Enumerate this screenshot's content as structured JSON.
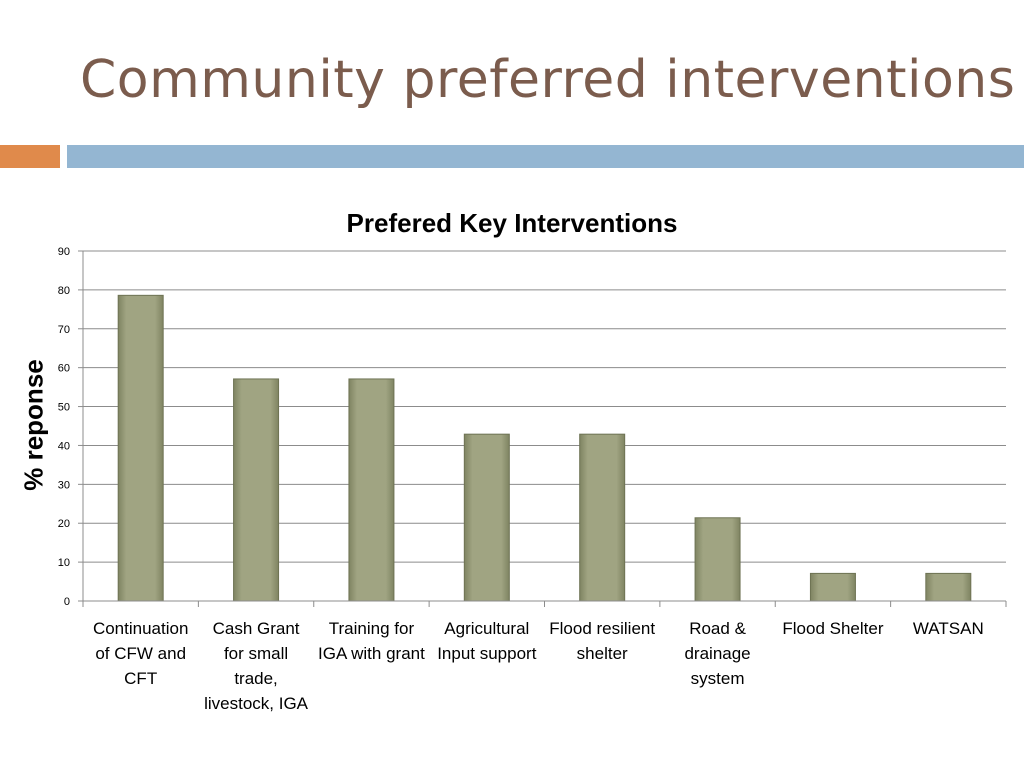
{
  "slide": {
    "title": "Community preferred interventions",
    "accent_colors": [
      "#e08a4b",
      "#94b6d2"
    ]
  },
  "chart_data": {
    "type": "bar",
    "title": "Prefered Key Interventions",
    "xlabel": "",
    "ylabel": "% reponse",
    "ylim": [
      0,
      90
    ],
    "yticks": [
      0,
      10,
      20,
      30,
      40,
      50,
      60,
      70,
      80,
      90
    ],
    "grid": true,
    "legend": "none",
    "bar_color": "#9a9e7a",
    "categories": [
      "Continuation of CFW and CFT",
      "Cash Grant for small trade, livestock, IGA",
      "Training for IGA with grant",
      "Agricultural Input support",
      "Flood resilient shelter",
      "Road & drainage system",
      "Flood Shelter",
      "WATSAN"
    ],
    "values": [
      78.6,
      57.1,
      57.1,
      42.9,
      42.9,
      21.4,
      7.1,
      7.1
    ]
  }
}
